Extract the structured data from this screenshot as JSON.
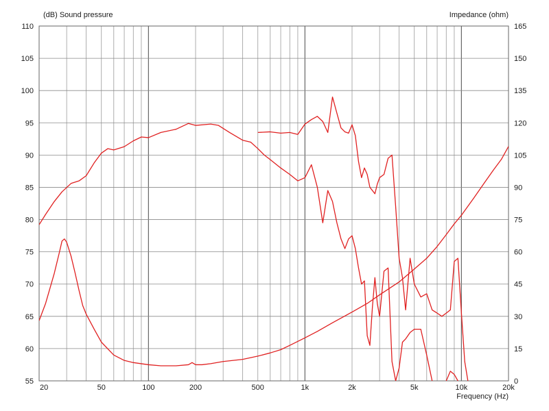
{
  "chart_data": {
    "type": "line",
    "x_scale": "log",
    "xlim": [
      20,
      20000
    ],
    "left_axis": {
      "label": "(dB)  Sound pressure",
      "ylim": [
        55,
        110
      ],
      "ticks": [
        55,
        60,
        65,
        70,
        75,
        80,
        85,
        90,
        95,
        100,
        105,
        110
      ]
    },
    "right_axis": {
      "label": "Impedance  (ohm)",
      "ylim": [
        0,
        165
      ],
      "ticks": [
        0,
        15,
        30,
        45,
        60,
        75,
        90,
        105,
        120,
        135,
        150,
        165
      ]
    },
    "xlabel": "Frequency  (Hz)",
    "x_tick_labels": [
      {
        "value": 20,
        "text": "20"
      },
      {
        "value": 50,
        "text": "50"
      },
      {
        "value": 100,
        "text": "100"
      },
      {
        "value": 200,
        "text": "200"
      },
      {
        "value": 500,
        "text": "500"
      },
      {
        "value": 1000,
        "text": "1k"
      },
      {
        "value": 2000,
        "text": "2k"
      },
      {
        "value": 5000,
        "text": "5k"
      },
      {
        "value": 10000,
        "text": "10k"
      },
      {
        "value": 20000,
        "text": "20k"
      }
    ],
    "grid": true,
    "line_color": "#e02020",
    "series": [
      {
        "axis": "left",
        "x": [
          20,
          22,
          25,
          28,
          32,
          36,
          40,
          45,
          50,
          55,
          60,
          70,
          80,
          90,
          100,
          120,
          150,
          180,
          200,
          250,
          280,
          330,
          400,
          450,
          500,
          550,
          600,
          700,
          800,
          900,
          1000,
          1100,
          1200,
          1300,
          1400,
          1500,
          1600,
          1700,
          1800,
          1900,
          2000,
          2100,
          2200,
          2300,
          2400,
          2500,
          2600,
          2700,
          2800,
          2900,
          3000,
          3200,
          3400,
          3600,
          3800,
          4000,
          4200,
          4400,
          4700,
          5000,
          5500,
          6000,
          6500,
          7000,
          7500,
          8000,
          8500,
          9000,
          9500,
          10000
        ],
        "y": [
          79.2,
          80.8,
          82.8,
          84.3,
          85.6,
          86.0,
          86.8,
          88.8,
          90.3,
          91.0,
          90.8,
          91.3,
          92.2,
          92.8,
          92.7,
          93.5,
          94.0,
          94.9,
          94.6,
          94.8,
          94.6,
          93.5,
          92.3,
          92.0,
          91.0,
          90.0,
          89.3,
          88.0,
          87.0,
          86.0,
          86.5,
          88.5,
          85.0,
          79.5,
          84.5,
          82.8,
          79.5,
          77.0,
          75.5,
          77.0,
          77.5,
          75.5,
          72.5,
          70.0,
          70.5,
          62.0,
          60.5,
          66.5,
          71.0,
          67.0,
          65.0,
          72.0,
          72.5,
          58.0,
          55.0,
          57.0,
          61.0,
          61.5,
          62.5,
          63.0,
          63.0,
          59.0,
          55.0,
          54.0,
          53.0,
          55.0,
          56.5,
          56.0,
          55.0,
          54.0
        ]
      },
      {
        "axis": "left",
        "x": [
          500,
          600,
          700,
          800,
          900,
          1000,
          1100,
          1200,
          1300,
          1400,
          1500,
          1600,
          1700,
          1800,
          1900,
          2000,
          2100,
          2200,
          2300,
          2400,
          2500,
          2600,
          2700,
          2800,
          2900,
          3000,
          3200,
          3400,
          3600,
          3800,
          4000,
          4200,
          4400,
          4700,
          5000,
          5500,
          6000,
          6500,
          7000,
          7500,
          8000,
          8500,
          9000,
          9500,
          10000,
          10500,
          11000
        ],
        "y": [
          93.5,
          93.6,
          93.4,
          93.5,
          93.2,
          94.8,
          95.5,
          96.0,
          95.2,
          93.5,
          99.0,
          96.5,
          94.2,
          93.6,
          93.4,
          94.7,
          93.0,
          89.0,
          86.5,
          88.0,
          87.0,
          85.0,
          84.5,
          84.0,
          85.5,
          86.5,
          87.0,
          89.5,
          90.0,
          82.0,
          74.0,
          71.0,
          66.0,
          74.0,
          70.0,
          68.0,
          68.5,
          66.0,
          65.5,
          65.0,
          65.5,
          66.0,
          73.5,
          74.0,
          65.5,
          58.0,
          55.0
        ]
      },
      {
        "axis": "right",
        "x": [
          20,
          22,
          25,
          27,
          28,
          29,
          30,
          32,
          34,
          36,
          38,
          40,
          45,
          50,
          60,
          70,
          80,
          100,
          120,
          150,
          180,
          190,
          200,
          220,
          250,
          300,
          400,
          500,
          600,
          700,
          800,
          1000,
          1200,
          1500,
          2000,
          2500,
          3000,
          4000,
          5000,
          6000,
          7000,
          8000,
          9000,
          10000,
          12000,
          14000,
          16000,
          18000,
          20000
        ],
        "y": [
          28.0,
          36.0,
          50.0,
          60.0,
          65.0,
          66.0,
          64.5,
          58.0,
          50.0,
          42.0,
          35.0,
          31.0,
          24.0,
          18.0,
          12.0,
          9.5,
          8.5,
          7.5,
          7.0,
          7.0,
          7.5,
          8.5,
          7.5,
          7.5,
          8.0,
          9.0,
          10.0,
          11.5,
          13.0,
          14.5,
          16.5,
          20.0,
          23.0,
          27.0,
          32.0,
          36.0,
          40.0,
          46.0,
          52.0,
          57.0,
          62.5,
          68.0,
          73.0,
          77.0,
          85.0,
          92.0,
          98.0,
          103.0,
          109.0
        ]
      }
    ]
  }
}
